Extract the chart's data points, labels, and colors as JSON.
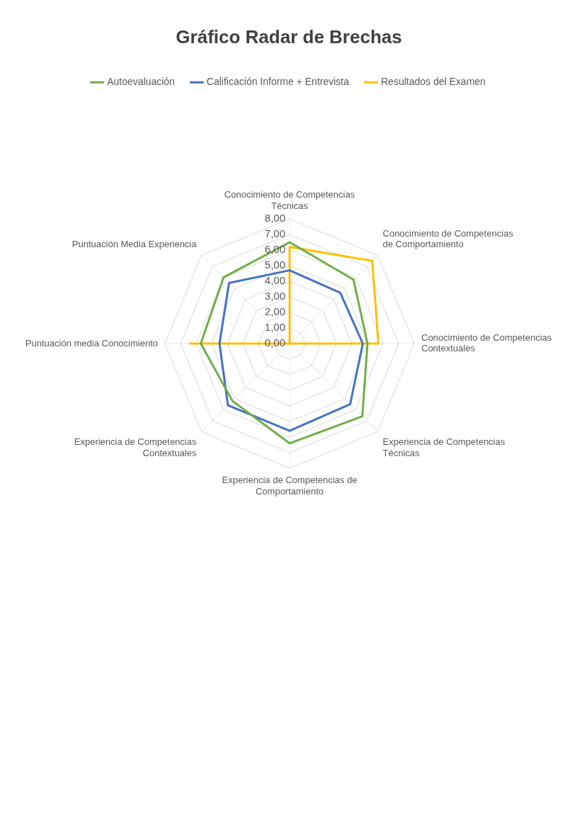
{
  "chart_data": {
    "type": "radar",
    "title": "Gráfico Radar de Brechas",
    "categories": [
      "Conocimiento de Competencias Técnicas",
      "Conocimiento de Competencias de Comportamiento",
      "Conocimiento de Competencias Contextuales",
      "Experiencia de Competencias Técnicas",
      "Experiencia de Competencias de Comportamiento",
      "Experiencia de Competencias Contextuales",
      "Puntuación media Conocimiento",
      "Puntuación Media Experiencia"
    ],
    "series": [
      {
        "name": "Autoevaluación",
        "color": "#70ad47",
        "values": [
          6.5,
          5.8,
          5.0,
          6.6,
          6.4,
          5.2,
          5.7,
          6.0
        ]
      },
      {
        "name": "Calificación Informe + Entrevista",
        "color": "#4472c4",
        "values": [
          4.7,
          4.6,
          4.7,
          5.5,
          5.6,
          5.6,
          4.5,
          5.5
        ]
      },
      {
        "name": "Resultados del Examen",
        "color": "#ffc000",
        "values": [
          6.2,
          7.5,
          5.7,
          0,
          0,
          0,
          6.4,
          0
        ]
      }
    ],
    "ylim": [
      0,
      8
    ],
    "yticks": [
      {
        "value": 0,
        "label": "0,00"
      },
      {
        "value": 1,
        "label": "1,00"
      },
      {
        "value": 2,
        "label": "2,00"
      },
      {
        "value": 3,
        "label": "3,00"
      },
      {
        "value": 4,
        "label": "4,00"
      },
      {
        "value": 5,
        "label": "5,00"
      },
      {
        "value": 6,
        "label": "6,00"
      },
      {
        "value": 7,
        "label": "7,00"
      },
      {
        "value": 8,
        "label": "8,00"
      }
    ],
    "grid": true,
    "legend": "top",
    "marker": "none",
    "line_style": "solid"
  }
}
